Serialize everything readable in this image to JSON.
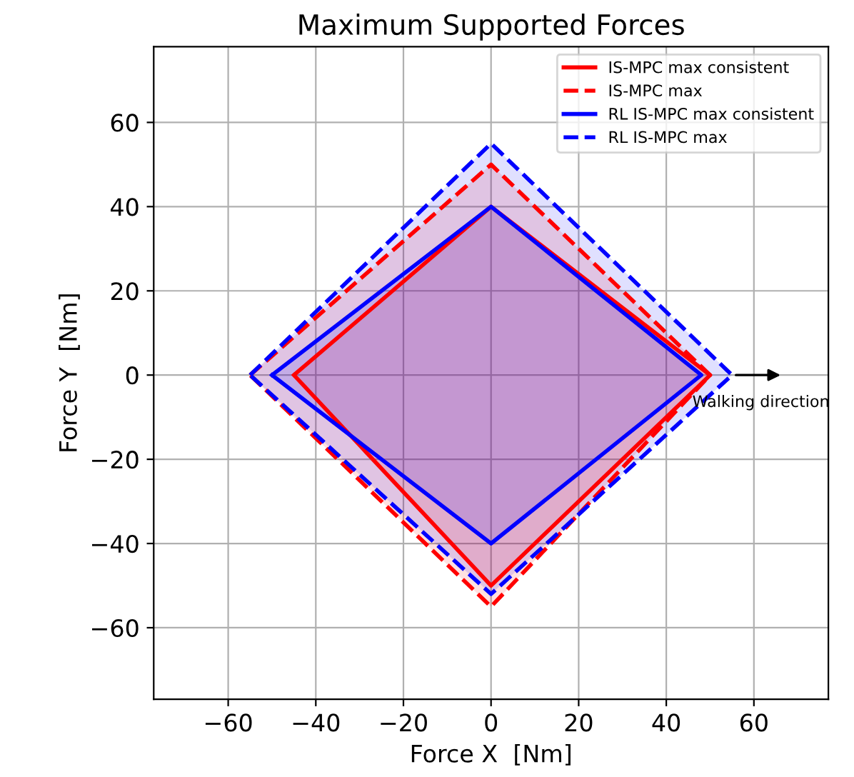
{
  "chart_data": {
    "type": "area",
    "title": "Maximum Supported Forces",
    "xlabel": "Force X  [Nm]",
    "ylabel": "Force Y  [Nm]",
    "xlim": [
      -77,
      77
    ],
    "ylim": [
      -77,
      78
    ],
    "xticks": [
      -60,
      -40,
      -20,
      0,
      20,
      40,
      60
    ],
    "yticks": [
      -60,
      -40,
      -20,
      0,
      20,
      40,
      60
    ],
    "grid": true,
    "legend": "top right",
    "series": [
      {
        "name": "IS-MPC max consistent",
        "color": "#ff0000",
        "line_style": "solid",
        "x": [
          -45,
          0,
          50,
          0,
          -45
        ],
        "values": [
          0,
          40,
          0,
          -50,
          0
        ]
      },
      {
        "name": "IS-MPC max",
        "color": "#ff0000",
        "line_style": "dashed",
        "x": [
          -55,
          0,
          50,
          0,
          -55
        ],
        "values": [
          0,
          50,
          0,
          -55,
          0
        ]
      },
      {
        "name": "RL IS-MPC max consistent",
        "color": "#0000ff",
        "line_style": "solid",
        "x": [
          -50,
          0,
          48,
          0,
          -50
        ],
        "values": [
          0,
          40,
          0,
          -40,
          0
        ]
      },
      {
        "name": "RL IS-MPC max",
        "color": "#0000ff",
        "line_style": "dashed",
        "x": [
          -55,
          0,
          55,
          0,
          -55
        ],
        "values": [
          0,
          55,
          0,
          -52,
          0
        ]
      }
    ],
    "annotations": [
      {
        "text": "Walking direction",
        "x": 55,
        "y": 0
      }
    ]
  }
}
